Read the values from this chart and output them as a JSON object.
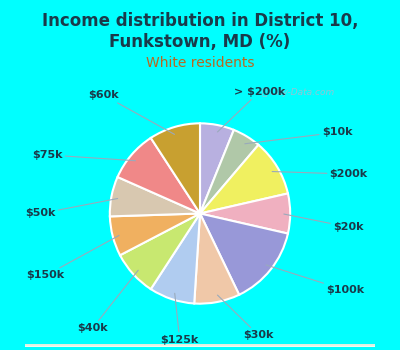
{
  "title1": "Income distribution in District 10,",
  "title2": "Funkstown, MD (%)",
  "subtitle": "White residents",
  "bg_color": "#00ffff",
  "chart_bg_top": "#e8f8f0",
  "chart_bg_bottom": "#c8eee0",
  "labels": [
    "> $200k",
    "$10k",
    "$200k",
    "$20k",
    "$100k",
    "$30k",
    "$125k",
    "$40k",
    "$150k",
    "$50k",
    "$75k",
    "$60k"
  ],
  "sizes": [
    6,
    5,
    10,
    7,
    14,
    8,
    8,
    8,
    7,
    7,
    9,
    9
  ],
  "colors": [
    "#b8b0e0",
    "#b0c8a8",
    "#f0f060",
    "#f0b0c0",
    "#9898d8",
    "#f0c8a8",
    "#b0ccf0",
    "#c8e870",
    "#f0b060",
    "#d8c8b0",
    "#f08888",
    "#c8a030"
  ],
  "label_fontsize": 8,
  "title_fontsize": 12,
  "subtitle_fontsize": 10,
  "title_color": "#1a3a4a",
  "subtitle_color": "#b86820",
  "label_color": "#1a3a4a",
  "watermark": "City-Data.com",
  "label_positions": {
    "> $200k": [
      0.3,
      1.08,
      "left"
    ],
    "$10k": [
      1.08,
      0.72,
      "left"
    ],
    "$200k": [
      1.15,
      0.35,
      "left"
    ],
    "$20k": [
      1.18,
      -0.12,
      "left"
    ],
    "$100k": [
      1.12,
      -0.68,
      "left"
    ],
    "$30k": [
      0.52,
      -1.08,
      "center"
    ],
    "$125k": [
      -0.18,
      -1.12,
      "center"
    ],
    "$40k": [
      -0.82,
      -1.02,
      "right"
    ],
    "$150k": [
      -1.2,
      -0.55,
      "right"
    ],
    "$50k": [
      -1.28,
      0.0,
      "right"
    ],
    "$75k": [
      -1.22,
      0.52,
      "right"
    ],
    "$60k": [
      -0.72,
      1.05,
      "right"
    ]
  }
}
